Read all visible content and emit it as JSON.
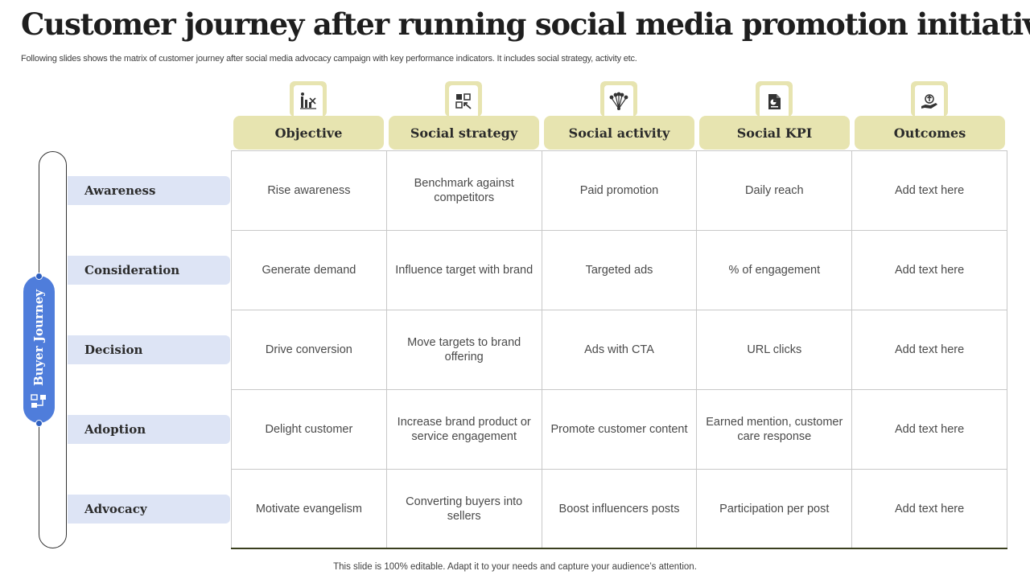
{
  "title": "Customer journey after running  social media promotion initiative",
  "subtitle": "Following slides shows the matrix of customer journey after social media advocacy campaign with key performance indicators. It includes social strategy, activity  etc.",
  "columns": [
    {
      "label": "Objective",
      "icon": "chart-icon"
    },
    {
      "label": "Social strategy",
      "icon": "strategy-icon"
    },
    {
      "label": "Social activity",
      "icon": "network-icon"
    },
    {
      "label": "Social KPI",
      "icon": "kpi-document-icon"
    },
    {
      "label": "Outcomes",
      "icon": "hand-growth-icon"
    }
  ],
  "journey_label": "Buyer Journey",
  "rows": [
    {
      "label": "Awareness",
      "cells": [
        "Rise awareness",
        "Benchmark against competitors",
        "Paid promotion",
        "Daily reach",
        "Add text here"
      ]
    },
    {
      "label": "Consideration",
      "cells": [
        "Generate demand",
        "Influence target with brand",
        "Targeted ads",
        "% of engagement",
        "Add text here"
      ]
    },
    {
      "label": "Decision",
      "cells": [
        "Drive conversion",
        "Move targets to brand offering",
        "Ads with CTA",
        "URL clicks",
        "Add text here"
      ]
    },
    {
      "label": "Adoption",
      "cells": [
        "Delight customer",
        "Increase brand product or service engagement",
        "Promote customer content",
        "Earned mention, customer care response",
        "Add text here"
      ]
    },
    {
      "label": "Advocacy",
      "cells": [
        "Motivate evangelism",
        "Converting buyers into sellers",
        "Boost influencers posts",
        "Participation per post",
        "Add text here"
      ]
    }
  ],
  "footer": "This slide is 100% editable. Adapt it to your needs and capture your audience’s attention.",
  "colors": {
    "header_fill": "#e7e4b0",
    "row_label_fill": "#dde4f5",
    "journey_fill": "#4f7ddb"
  }
}
